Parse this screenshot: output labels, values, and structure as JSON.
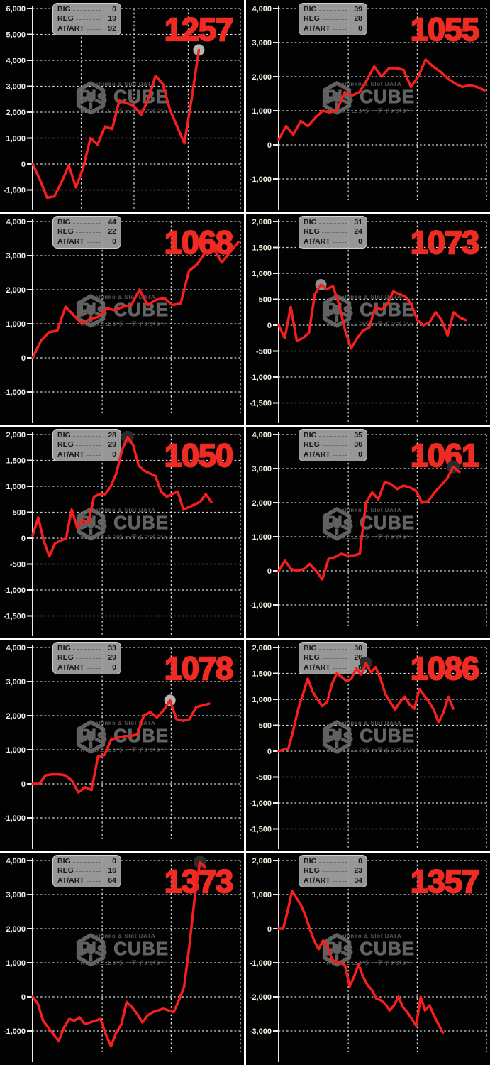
{
  "watermark": {
    "top_text": "Pachinko & Slot DATA",
    "brand": "P's CUBE",
    "bottom_text": "wakux2 エンターテインメント"
  },
  "legend_labels": [
    "BIG",
    "REG",
    "AT/ART"
  ],
  "colors": {
    "background": "#020202",
    "line": "#f61f1f",
    "machine_number": "#ef2b24",
    "grid": "#dcdcdc",
    "axis": "#eaeaea",
    "tick_label": "#f2eee0",
    "legend_bg": "#a3a3a3",
    "legend_text": "#161616",
    "divider": "#ffffff",
    "watermark": "#6f6f6f",
    "marker_light": "#b5b5b5",
    "marker_mid": "#8f8f8f",
    "marker_dark": "#2b2b2b"
  },
  "chart_data": [
    {
      "type": "line",
      "machine_no": "1257",
      "big": 0,
      "reg": 19,
      "at_art": 92,
      "yticks": [
        6000,
        5000,
        4000,
        3000,
        2000,
        1000,
        0,
        -1000
      ],
      "values": [
        0,
        -600,
        -1300,
        -1250,
        -700,
        -50,
        -900,
        -150,
        1000,
        750,
        1450,
        1350,
        2450,
        2350,
        2250,
        1900,
        2500,
        3400,
        3100,
        2100,
        1450,
        800,
        2500,
        4400
      ],
      "end_frac": 0.8,
      "vlines": [
        0.234,
        0.488,
        0.749
      ],
      "marker": {
        "index": 23,
        "color": "light"
      }
    },
    {
      "type": "line",
      "machine_no": "1055",
      "big": 39,
      "reg": 28,
      "at_art": 0,
      "yticks": [
        4000,
        3000,
        2000,
        1000,
        0,
        -1000
      ],
      "values": [
        150,
        550,
        300,
        700,
        550,
        800,
        1000,
        950,
        1050,
        1550,
        1450,
        1550,
        1900,
        2300,
        2000,
        2250,
        2250,
        2200,
        1700,
        2000,
        2500,
        2300,
        2150,
        1950,
        1800,
        1700,
        1750,
        1700,
        1600
      ],
      "end_frac": 0.99,
      "vlines": [
        0.335,
        0.667
      ],
      "marker": null
    },
    {
      "type": "line",
      "machine_no": "1068",
      "big": 44,
      "reg": 22,
      "at_art": 0,
      "yticks": [
        4000,
        3000,
        2000,
        1000,
        0,
        -1000
      ],
      "values": [
        0,
        500,
        750,
        800,
        1500,
        1250,
        1000,
        1150,
        1200,
        1450,
        1400,
        1500,
        1550,
        2000,
        1550,
        1700,
        1750,
        1550,
        1600,
        2550,
        2750,
        3100,
        3200,
        2800,
        3100,
        3400
      ],
      "end_frac": 0.99,
      "vlines": [
        0.335,
        0.667
      ],
      "marker": null
    },
    {
      "type": "line",
      "machine_no": "1073",
      "big": 31,
      "reg": 24,
      "at_art": 0,
      "yticks": [
        2000,
        1500,
        1000,
        500,
        0,
        -500,
        -1000,
        -1500
      ],
      "values": [
        0,
        -250,
        350,
        -300,
        -250,
        -150,
        600,
        780,
        700,
        750,
        400,
        -100,
        -450,
        -250,
        -100,
        -50,
        350,
        300,
        400,
        650,
        600,
        550,
        400,
        100,
        0,
        50,
        250,
        100,
        -200,
        250,
        150,
        100
      ],
      "end_frac": 0.9,
      "vlines": [
        0.335,
        0.667
      ],
      "marker": {
        "index": 7,
        "color": "mid"
      }
    },
    {
      "type": "line",
      "machine_no": "1050",
      "big": 28,
      "reg": 29,
      "at_art": 0,
      "yticks": [
        2000,
        1500,
        1000,
        500,
        0,
        -500,
        -1000,
        -1500
      ],
      "values": [
        50,
        400,
        -50,
        -350,
        -100,
        -50,
        0,
        550,
        200,
        350,
        300,
        800,
        850,
        850,
        1000,
        1250,
        1700,
        1950,
        1800,
        1400,
        1300,
        1250,
        1200,
        900,
        800,
        850,
        900,
        550,
        600,
        650,
        700,
        850,
        700
      ],
      "end_frac": 0.86,
      "vlines": [
        0.335,
        0.667
      ],
      "marker": {
        "index": 17,
        "color": "dark"
      }
    },
    {
      "type": "line",
      "machine_no": "1061",
      "big": 35,
      "reg": 36,
      "at_art": 0,
      "yticks": [
        4000,
        3000,
        2000,
        1000,
        0,
        -1000
      ],
      "values": [
        0,
        300,
        50,
        0,
        50,
        200,
        0,
        -250,
        350,
        400,
        500,
        450,
        450,
        500,
        2000,
        2300,
        2100,
        2600,
        2550,
        2400,
        2500,
        2450,
        2350,
        2000,
        2050,
        2300,
        2500,
        2700,
        3050,
        2900
      ],
      "end_frac": 0.87,
      "vlines": [
        0.335,
        0.667
      ],
      "marker": {
        "index": 28,
        "color": "dark"
      }
    },
    {
      "type": "line",
      "machine_no": "1078",
      "big": 33,
      "reg": 29,
      "at_art": 0,
      "yticks": [
        4000,
        3000,
        2000,
        1000,
        0,
        -1000
      ],
      "values": [
        0,
        0,
        250,
        280,
        280,
        250,
        100,
        -250,
        -100,
        -180,
        800,
        850,
        1300,
        1350,
        1400,
        1400,
        1450,
        2000,
        2100,
        1950,
        2150,
        2450,
        1900,
        1850,
        1900,
        2250,
        2300,
        2350
      ],
      "end_frac": 0.85,
      "vlines": [
        0.335,
        0.667
      ],
      "marker": {
        "index": 21,
        "color": "light"
      }
    },
    {
      "type": "line",
      "machine_no": "1086",
      "big": 30,
      "reg": 26,
      "at_art": 0,
      "yticks": [
        2000,
        1500,
        1000,
        500,
        0,
        -500,
        -1000,
        -1500
      ],
      "values": [
        0,
        30,
        50,
        400,
        800,
        1100,
        1400,
        1150,
        1000,
        870,
        950,
        1300,
        1500,
        1430,
        1350,
        1400,
        1600,
        1480,
        1700,
        1520,
        1620,
        1400,
        1100,
        950,
        800,
        950,
        1050,
        900,
        820,
        1200,
        1080,
        950,
        800,
        550,
        750,
        1050,
        820
      ],
      "end_frac": 0.84,
      "vlines": [
        0.335,
        0.667
      ],
      "marker": {
        "index": 18,
        "color": "dark"
      }
    },
    {
      "type": "line",
      "machine_no": "1373",
      "big": 0,
      "reg": 16,
      "at_art": 64,
      "yticks": [
        4000,
        3000,
        2000,
        1000,
        0,
        -1000
      ],
      "values": [
        0,
        -200,
        -700,
        -900,
        -1100,
        -1300,
        -900,
        -650,
        -700,
        -600,
        -800,
        -750,
        -700,
        -650,
        -1100,
        -1450,
        -1050,
        -800,
        -150,
        -300,
        -500,
        -750,
        -550,
        -450,
        -400,
        -350,
        -400,
        -450,
        -100,
        300,
        1500,
        2900,
        3950,
        3800
      ],
      "end_frac": 0.83,
      "vlines": [
        0.335,
        0.667
      ],
      "marker": {
        "index": 32,
        "color": "dark"
      }
    },
    {
      "type": "line",
      "machine_no": "1357",
      "big": 0,
      "reg": 23,
      "at_art": 34,
      "yticks": [
        2000,
        1000,
        0,
        -1000,
        -2000,
        -3000
      ],
      "values": [
        0,
        0,
        500,
        1100,
        900,
        700,
        400,
        0,
        -350,
        -600,
        -350,
        -500,
        -900,
        -1000,
        -1000,
        -1100,
        -1700,
        -1400,
        -1050,
        -1400,
        -1650,
        -1800,
        -2050,
        -2100,
        -2200,
        -2400,
        -2250,
        -2000,
        -2300,
        -2450,
        -2650,
        -2850,
        -2000,
        -2400,
        -2250,
        -2550,
        -2800,
        -3050
      ],
      "end_frac": 0.79,
      "vlines": [
        0.335,
        0.667
      ],
      "marker": null
    }
  ]
}
